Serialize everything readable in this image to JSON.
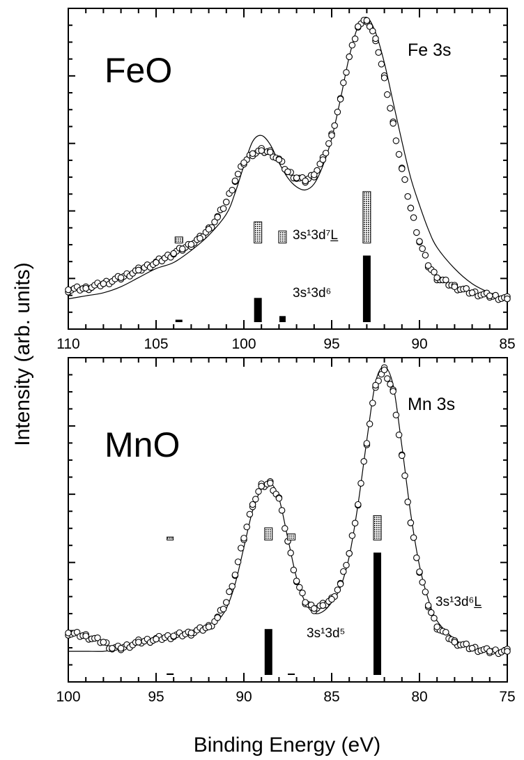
{
  "figure": {
    "ylabel": "Intensity (arb. units)",
    "xlabel": "Binding Energy (eV)"
  },
  "chart_data": [
    {
      "type": "line",
      "title": "FeO",
      "subtitle": "Fe 3s",
      "xlabel": "Binding Energy (eV)",
      "ylabel": "Intensity (arb. units)",
      "xlim": [
        110,
        85
      ],
      "ylim": [
        0,
        1.06
      ],
      "xticks": [
        110,
        105,
        100,
        95,
        90,
        85
      ],
      "tick_labels": [
        "110",
        "105",
        "100",
        "95",
        "90",
        "85"
      ],
      "series": [
        {
          "name": "experiment",
          "style": "open-circles",
          "x": [
            110.0,
            109.0,
            108.0,
            107.0,
            106.0,
            105.0,
            104.0,
            103.5,
            103.0,
            102.5,
            102.0,
            101.5,
            101.0,
            100.5,
            100.0,
            99.5,
            99.0,
            98.5,
            98.0,
            97.5,
            97.0,
            96.5,
            96.0,
            95.5,
            95.0,
            94.5,
            94.0,
            93.5,
            93.0,
            92.5,
            92.0,
            91.5,
            91.0,
            90.5,
            90.0,
            89.5,
            89.0,
            88.0,
            87.0,
            86.0,
            85.0
          ],
          "y": [
            0.13,
            0.135,
            0.15,
            0.17,
            0.195,
            0.22,
            0.25,
            0.265,
            0.28,
            0.3,
            0.33,
            0.37,
            0.42,
            0.49,
            0.55,
            0.58,
            0.59,
            0.585,
            0.56,
            0.52,
            0.5,
            0.49,
            0.51,
            0.56,
            0.64,
            0.76,
            0.9,
            1.0,
            1.02,
            0.96,
            0.83,
            0.68,
            0.53,
            0.4,
            0.29,
            0.21,
            0.17,
            0.14,
            0.12,
            0.11,
            0.1
          ]
        },
        {
          "name": "calculation",
          "style": "solid-line",
          "x": [
            110.0,
            109.0,
            108.0,
            107.0,
            106.0,
            105.0,
            104.0,
            103.0,
            102.0,
            101.0,
            100.5,
            100.0,
            99.5,
            99.0,
            98.5,
            98.0,
            97.5,
            97.0,
            96.5,
            96.0,
            95.5,
            95.0,
            94.5,
            94.0,
            93.5,
            93.0,
            92.5,
            92.0,
            91.5,
            91.0,
            90.5,
            90.0,
            89.5,
            89.0,
            88.0,
            87.0,
            86.0,
            85.0
          ],
          "y": [
            0.1,
            0.11,
            0.12,
            0.14,
            0.17,
            0.2,
            0.22,
            0.26,
            0.31,
            0.38,
            0.45,
            0.54,
            0.62,
            0.64,
            0.61,
            0.55,
            0.5,
            0.47,
            0.46,
            0.48,
            0.54,
            0.63,
            0.76,
            0.9,
            1.0,
            1.03,
            0.98,
            0.88,
            0.75,
            0.62,
            0.5,
            0.41,
            0.33,
            0.27,
            0.2,
            0.15,
            0.12,
            0.1
          ]
        }
      ],
      "components": [
        {
          "label": "3s¹3d⁷L̲",
          "style": "hatched",
          "x": [
            103.7,
            99.2,
            97.8,
            93.0
          ],
          "heights": [
            0.02,
            0.07,
            0.04,
            0.17
          ]
        },
        {
          "label": "3s¹3d⁶",
          "style": "solid",
          "x": [
            103.7,
            99.2,
            97.8,
            93.0
          ],
          "heights": [
            0.008,
            0.08,
            0.02,
            0.22
          ]
        }
      ]
    },
    {
      "type": "line",
      "title": "MnO",
      "subtitle": "Mn 3s",
      "xlabel": "Binding Energy (eV)",
      "ylabel": "Intensity (arb. units)",
      "xlim": [
        100,
        75
      ],
      "ylim": [
        0,
        1.06
      ],
      "xticks": [
        100,
        95,
        90,
        85,
        80,
        75
      ],
      "tick_labels": [
        "100",
        "95",
        "90",
        "85",
        "80",
        "75"
      ],
      "series": [
        {
          "name": "experiment",
          "style": "open-circles",
          "x": [
            100.0,
            99.0,
            98.0,
            97.5,
            97.0,
            96.0,
            95.0,
            94.0,
            93.0,
            92.0,
            91.5,
            91.0,
            90.5,
            90.0,
            89.5,
            89.0,
            88.5,
            88.0,
            87.5,
            87.0,
            86.5,
            86.0,
            85.5,
            85.0,
            84.5,
            84.0,
            83.5,
            83.0,
            82.5,
            82.0,
            81.5,
            81.0,
            80.5,
            80.0,
            79.5,
            79.0,
            78.0,
            77.0,
            76.0,
            75.0
          ],
          "y": [
            0.16,
            0.15,
            0.13,
            0.11,
            0.11,
            0.13,
            0.14,
            0.15,
            0.16,
            0.18,
            0.21,
            0.26,
            0.35,
            0.47,
            0.58,
            0.64,
            0.65,
            0.6,
            0.46,
            0.33,
            0.26,
            0.24,
            0.25,
            0.27,
            0.32,
            0.42,
            0.58,
            0.78,
            0.97,
            1.02,
            0.95,
            0.74,
            0.52,
            0.36,
            0.25,
            0.18,
            0.13,
            0.11,
            0.1,
            0.1
          ]
        },
        {
          "name": "calculation",
          "style": "solid-line",
          "x": [
            100.0,
            99.0,
            98.0,
            97.5,
            97.0,
            96.0,
            95.0,
            94.0,
            93.0,
            92.0,
            91.5,
            91.0,
            90.5,
            90.0,
            89.5,
            89.0,
            88.5,
            88.0,
            87.5,
            87.0,
            86.5,
            86.0,
            85.5,
            85.0,
            84.5,
            84.0,
            83.5,
            83.0,
            82.5,
            82.0,
            81.5,
            81.0,
            80.5,
            80.0,
            79.5,
            79.0,
            78.0,
            77.0,
            76.0,
            75.0
          ],
          "y": [
            0.1,
            0.1,
            0.1,
            0.105,
            0.11,
            0.125,
            0.14,
            0.15,
            0.165,
            0.18,
            0.2,
            0.24,
            0.32,
            0.44,
            0.56,
            0.63,
            0.65,
            0.6,
            0.47,
            0.34,
            0.26,
            0.225,
            0.23,
            0.26,
            0.31,
            0.41,
            0.58,
            0.79,
            0.98,
            1.03,
            0.97,
            0.77,
            0.55,
            0.38,
            0.27,
            0.2,
            0.14,
            0.11,
            0.1,
            0.1
          ]
        }
      ],
      "components": [
        {
          "label": "3s¹3d⁶L̲",
          "style": "hatched",
          "x": [
            94.2,
            88.6,
            87.3,
            82.4
          ],
          "heights": [
            0.01,
            0.04,
            0.02,
            0.08
          ]
        },
        {
          "label": "3s¹3d⁵",
          "style": "solid",
          "x": [
            94.2,
            88.6,
            87.3,
            82.4
          ],
          "heights": [
            0.005,
            0.15,
            0.004,
            0.4
          ]
        }
      ]
    }
  ]
}
